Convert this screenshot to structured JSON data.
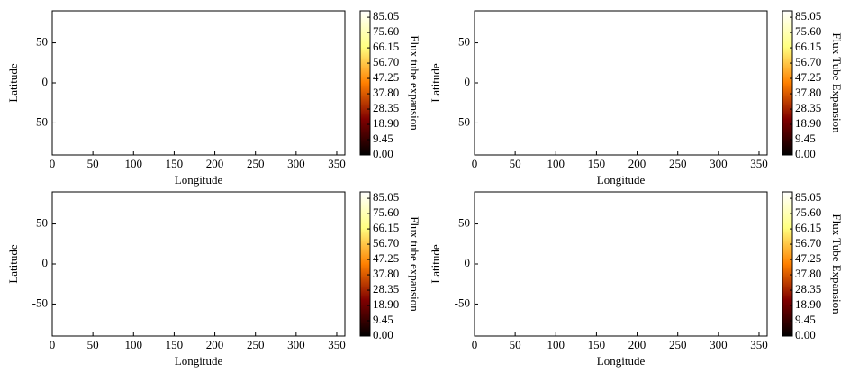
{
  "chart_data": [
    {
      "type": "heatmap",
      "xlabel": "Longitude",
      "ylabel": "Latitude",
      "colorbar_label": "Flux tube expansion",
      "colormap": "afmhot",
      "xlim": [
        0,
        360
      ],
      "xticks": [
        0,
        50,
        100,
        150,
        200,
        250,
        300,
        350
      ],
      "ylim": [
        -90,
        90
      ],
      "yticks": [
        -50,
        0,
        50
      ],
      "clim": [
        0,
        89
      ],
      "cticks": [
        {
          "value": 0,
          "label": "0.00"
        },
        {
          "value": 9.45,
          "label": "9.45"
        },
        {
          "value": 18.9,
          "label": "18.90"
        },
        {
          "value": 28.35,
          "label": "28.35"
        },
        {
          "value": 37.8,
          "label": "37.80"
        },
        {
          "value": 47.25,
          "label": "47.25"
        },
        {
          "value": 56.7,
          "label": "56.70"
        },
        {
          "value": 66.15,
          "label": "66.15"
        },
        {
          "value": 75.6,
          "label": "75.60"
        },
        {
          "value": 85.05,
          "label": "85.05"
        }
      ]
    },
    {
      "type": "heatmap",
      "xlabel": "Longitude",
      "ylabel": "Latitude",
      "colorbar_label": "Flux Tube Expansion",
      "colormap": "afmhot",
      "xlim": [
        0,
        360
      ],
      "xticks": [
        0,
        50,
        100,
        150,
        200,
        250,
        300,
        350
      ],
      "ylim": [
        -90,
        90
      ],
      "yticks": [
        -50,
        0,
        50
      ],
      "clim": [
        0,
        89
      ],
      "cticks": [
        {
          "value": 0,
          "label": "0.00"
        },
        {
          "value": 9.45,
          "label": "9.45"
        },
        {
          "value": 18.9,
          "label": "18.90"
        },
        {
          "value": 28.35,
          "label": "28.35"
        },
        {
          "value": 37.8,
          "label": "37.80"
        },
        {
          "value": 47.25,
          "label": "47.25"
        },
        {
          "value": 56.7,
          "label": "56.70"
        },
        {
          "value": 66.15,
          "label": "66.15"
        },
        {
          "value": 75.6,
          "label": "75.60"
        },
        {
          "value": 85.05,
          "label": "85.05"
        }
      ]
    },
    {
      "type": "heatmap",
      "xlabel": "Longitude",
      "ylabel": "Latitude",
      "colorbar_label": "Flux tube expansion",
      "colormap": "afmhot",
      "xlim": [
        0,
        360
      ],
      "xticks": [
        0,
        50,
        100,
        150,
        200,
        250,
        300,
        350
      ],
      "ylim": [
        -90,
        90
      ],
      "yticks": [
        -50,
        0,
        50
      ],
      "clim": [
        0,
        89
      ],
      "cticks": [
        {
          "value": 0,
          "label": "0.00"
        },
        {
          "value": 9.45,
          "label": "9.45"
        },
        {
          "value": 18.9,
          "label": "18.90"
        },
        {
          "value": 28.35,
          "label": "28.35"
        },
        {
          "value": 37.8,
          "label": "37.80"
        },
        {
          "value": 47.25,
          "label": "47.25"
        },
        {
          "value": 56.7,
          "label": "56.70"
        },
        {
          "value": 66.15,
          "label": "66.15"
        },
        {
          "value": 75.6,
          "label": "75.60"
        },
        {
          "value": 85.05,
          "label": "85.05"
        }
      ]
    },
    {
      "type": "heatmap",
      "xlabel": "Longitude",
      "ylabel": "Latitude",
      "colorbar_label": "Flux Tube Expansion",
      "colormap": "afmhot",
      "xlim": [
        0,
        360
      ],
      "xticks": [
        0,
        50,
        100,
        150,
        200,
        250,
        300,
        350
      ],
      "ylim": [
        -90,
        90
      ],
      "yticks": [
        -50,
        0,
        50
      ],
      "clim": [
        0,
        89
      ],
      "cticks": [
        {
          "value": 0,
          "label": "0.00"
        },
        {
          "value": 9.45,
          "label": "9.45"
        },
        {
          "value": 18.9,
          "label": "18.90"
        },
        {
          "value": 28.35,
          "label": "28.35"
        },
        {
          "value": 37.8,
          "label": "37.80"
        },
        {
          "value": 47.25,
          "label": "47.25"
        },
        {
          "value": 56.7,
          "label": "56.70"
        },
        {
          "value": 66.15,
          "label": "66.15"
        },
        {
          "value": 75.6,
          "label": "75.60"
        },
        {
          "value": 85.05,
          "label": "85.05"
        }
      ]
    }
  ]
}
